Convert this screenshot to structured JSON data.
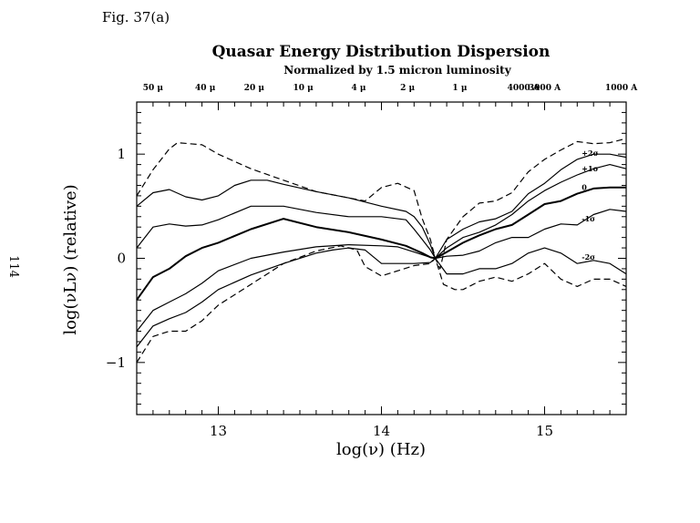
{
  "figure": {
    "label": "Fig. 37(a)",
    "page_number": "114"
  },
  "chart_data": {
    "type": "line",
    "title": "Quasar Energy Distribution Dispersion",
    "subtitle": "Normalized by 1.5 micron luminosity",
    "xlabel": "log(ν) (Hz)",
    "ylabel": "log(νLν) (relative)",
    "xlim": [
      12.5,
      15.5
    ],
    "ylim": [
      -1.5,
      1.5
    ],
    "xticks": [
      13,
      14,
      15
    ],
    "yticks": [
      -1,
      0,
      1
    ],
    "top_axis_labels": [
      {
        "label": "50 μ",
        "x": 12.6
      },
      {
        "label": "40 μ",
        "x": 12.92
      },
      {
        "label": "20 μ",
        "x": 13.22
      },
      {
        "label": "10 μ",
        "x": 13.52
      },
      {
        "label": "4 μ",
        "x": 13.86
      },
      {
        "label": "2 μ",
        "x": 14.16
      },
      {
        "label": "1 μ",
        "x": 14.48
      },
      {
        "label": "4000 A",
        "x": 14.87
      },
      {
        "label": "3000 A",
        "x": 15.0
      },
      {
        "label": "1000 A",
        "x": 15.47
      }
    ],
    "curve_labels": [
      {
        "label": "+2σ",
        "series": "plus2sigma"
      },
      {
        "label": "+1σ",
        "series": "plus1sigma"
      },
      {
        "label": "0",
        "series": "median"
      },
      {
        "label": "-1σ",
        "series": "minus1sigma"
      },
      {
        "label": "-2σ",
        "series": "minus2sigma"
      }
    ],
    "series": [
      {
        "key": "upper_dashed",
        "style": "dashed",
        "width": 1.2,
        "x": [
          12.5,
          12.6,
          12.7,
          12.75,
          12.9,
          13.0,
          13.2,
          13.4,
          13.6,
          13.8,
          13.9,
          14.0,
          14.1,
          14.2,
          14.25,
          14.3,
          14.33,
          14.36,
          14.4,
          14.5,
          14.6,
          14.7,
          14.8,
          14.9,
          15.0,
          15.1,
          15.2,
          15.3,
          15.4,
          15.5
        ],
        "y": [
          0.6,
          0.85,
          1.05,
          1.11,
          1.09,
          1.0,
          0.86,
          0.75,
          0.64,
          0.58,
          0.55,
          0.68,
          0.72,
          0.65,
          0.38,
          0.18,
          0.0,
          -0.1,
          0.18,
          0.4,
          0.53,
          0.55,
          0.63,
          0.83,
          0.95,
          1.04,
          1.12,
          1.1,
          1.11,
          1.15
        ]
      },
      {
        "key": "plus2sigma",
        "style": "solid",
        "width": 1.2,
        "x": [
          12.5,
          12.6,
          12.7,
          12.8,
          12.9,
          13.0,
          13.1,
          13.2,
          13.3,
          13.4,
          13.6,
          13.8,
          14.0,
          14.15,
          14.2,
          14.25,
          14.3,
          14.33,
          14.4,
          14.5,
          14.6,
          14.7,
          14.8,
          14.9,
          15.0,
          15.1,
          15.2,
          15.3,
          15.4,
          15.5
        ],
        "y": [
          0.5,
          0.63,
          0.66,
          0.59,
          0.56,
          0.6,
          0.7,
          0.75,
          0.75,
          0.71,
          0.64,
          0.58,
          0.5,
          0.45,
          0.4,
          0.3,
          0.13,
          0.0,
          0.18,
          0.28,
          0.35,
          0.38,
          0.45,
          0.62,
          0.72,
          0.85,
          0.95,
          1.0,
          1.0,
          0.97
        ]
      },
      {
        "key": "plus1sigma",
        "style": "solid",
        "width": 1.2,
        "x": [
          12.5,
          12.6,
          12.7,
          12.8,
          12.9,
          13.0,
          13.2,
          13.4,
          13.6,
          13.8,
          14.0,
          14.15,
          14.2,
          14.25,
          14.3,
          14.33,
          14.4,
          14.5,
          14.6,
          14.7,
          14.8,
          14.9,
          15.0,
          15.1,
          15.2,
          15.3,
          15.4,
          15.5
        ],
        "y": [
          0.1,
          0.3,
          0.33,
          0.31,
          0.32,
          0.37,
          0.5,
          0.5,
          0.44,
          0.4,
          0.4,
          0.37,
          0.28,
          0.18,
          0.08,
          0.0,
          0.1,
          0.2,
          0.25,
          0.32,
          0.42,
          0.55,
          0.65,
          0.73,
          0.8,
          0.86,
          0.9,
          0.86
        ]
      },
      {
        "key": "median",
        "style": "solid",
        "width": 2.0,
        "x": [
          12.5,
          12.6,
          12.7,
          12.8,
          12.9,
          13.0,
          13.2,
          13.4,
          13.6,
          13.8,
          14.0,
          14.15,
          14.25,
          14.3,
          14.33,
          14.4,
          14.5,
          14.6,
          14.7,
          14.8,
          14.9,
          15.0,
          15.1,
          15.2,
          15.3,
          15.4,
          15.5
        ],
        "y": [
          -0.4,
          -0.18,
          -0.1,
          0.02,
          0.1,
          0.15,
          0.28,
          0.38,
          0.3,
          0.25,
          0.18,
          0.12,
          0.05,
          0.01,
          0.0,
          0.06,
          0.15,
          0.22,
          0.28,
          0.32,
          0.42,
          0.52,
          0.55,
          0.62,
          0.67,
          0.68,
          0.68
        ]
      },
      {
        "key": "minus1sigma",
        "style": "solid",
        "width": 1.2,
        "x": [
          12.5,
          12.6,
          12.7,
          12.8,
          12.9,
          13.0,
          13.2,
          13.4,
          13.6,
          13.8,
          14.0,
          14.1,
          14.2,
          14.3,
          14.33,
          14.4,
          14.5,
          14.6,
          14.7,
          14.8,
          14.9,
          15.0,
          15.1,
          15.2,
          15.3,
          15.4,
          15.5
        ],
        "y": [
          -0.7,
          -0.5,
          -0.42,
          -0.34,
          -0.24,
          -0.12,
          0.0,
          0.06,
          0.11,
          0.13,
          0.12,
          0.11,
          0.06,
          0.01,
          0.0,
          0.02,
          0.03,
          0.07,
          0.15,
          0.2,
          0.2,
          0.28,
          0.33,
          0.32,
          0.42,
          0.47,
          0.45
        ]
      },
      {
        "key": "minus2sigma",
        "style": "solid",
        "width": 1.2,
        "x": [
          12.5,
          12.6,
          12.7,
          12.8,
          12.9,
          13.0,
          13.2,
          13.4,
          13.6,
          13.7,
          13.8,
          13.9,
          14.0,
          14.1,
          14.2,
          14.3,
          14.33,
          14.4,
          14.5,
          14.6,
          14.7,
          14.8,
          14.9,
          15.0,
          15.1,
          15.2,
          15.3,
          15.4,
          15.5
        ],
        "y": [
          -0.85,
          -0.65,
          -0.58,
          -0.52,
          -0.42,
          -0.3,
          -0.16,
          -0.05,
          0.05,
          0.08,
          0.1,
          0.08,
          -0.05,
          -0.05,
          -0.05,
          -0.04,
          0.0,
          -0.15,
          -0.15,
          -0.1,
          -0.1,
          -0.05,
          0.05,
          0.1,
          0.05,
          -0.05,
          -0.02,
          -0.05,
          -0.15
        ]
      },
      {
        "key": "lower_dashed",
        "style": "dashed",
        "width": 1.2,
        "x": [
          12.5,
          12.6,
          12.7,
          12.8,
          12.9,
          13.0,
          13.2,
          13.4,
          13.6,
          13.75,
          13.85,
          13.9,
          14.0,
          14.1,
          14.2,
          14.3,
          14.33,
          14.38,
          14.45,
          14.5,
          14.6,
          14.7,
          14.8,
          14.9,
          15.0,
          15.1,
          15.2,
          15.3,
          15.4,
          15.5
        ],
        "y": [
          -1.0,
          -0.75,
          -0.7,
          -0.7,
          -0.6,
          -0.45,
          -0.25,
          -0.05,
          0.07,
          0.12,
          0.08,
          -0.08,
          -0.17,
          -0.12,
          -0.07,
          -0.05,
          0.0,
          -0.25,
          -0.3,
          -0.3,
          -0.22,
          -0.18,
          -0.22,
          -0.15,
          -0.05,
          -0.2,
          -0.27,
          -0.2,
          -0.2,
          -0.27
        ]
      }
    ]
  }
}
